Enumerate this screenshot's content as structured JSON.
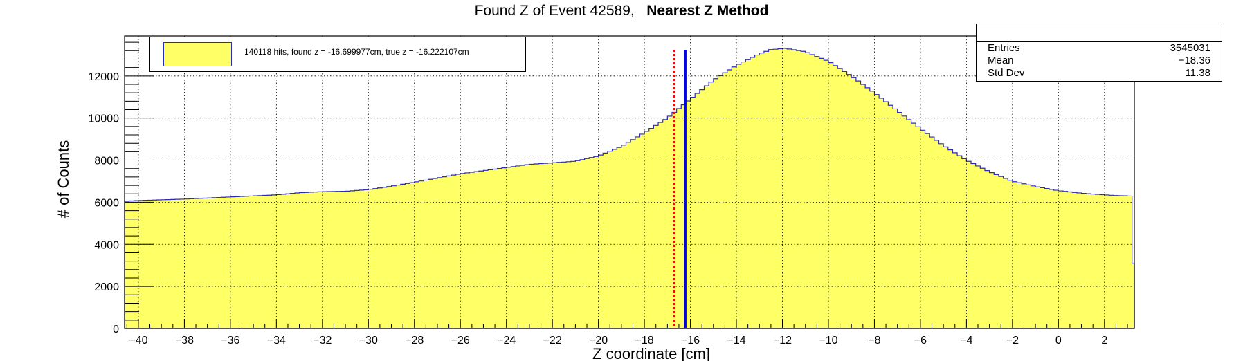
{
  "title": {
    "prefix": "Found Z of Event 42589,",
    "method": "Nearest Z Method"
  },
  "legend": {
    "label": "140118 hits, found z = -16.699977cm, true z = -16.222107cm",
    "fill_color": "#ffff66",
    "line_color": "#2b2bb5"
  },
  "stats": {
    "entries_label": "Entries",
    "entries_value": "3545031",
    "mean_label": "Mean",
    "mean_value": "−18.36",
    "stddev_label": "Std Dev",
    "stddev_value": "11.38"
  },
  "chart_data": {
    "type": "histogram",
    "xlabel": "Z coordinate [cm]",
    "ylabel": "# of Counts",
    "xlim": [
      -40.6,
      3.3
    ],
    "ylim": [
      0,
      13900
    ],
    "x_ticks": [
      -40,
      -38,
      -36,
      -34,
      -32,
      -30,
      -28,
      -26,
      -24,
      -22,
      -20,
      -18,
      -16,
      -14,
      -12,
      -10,
      -8,
      -6,
      -4,
      -2,
      0,
      2
    ],
    "y_ticks": [
      0,
      2000,
      4000,
      6000,
      8000,
      10000,
      12000
    ],
    "grid": true,
    "bin_width": 0.2,
    "fill_color": "#ffff66",
    "line_color": "#2b2bb5",
    "profile": [
      [
        -40.6,
        3000
      ],
      [
        -40.5,
        6050
      ],
      [
        -40,
        6080
      ],
      [
        -38,
        6150
      ],
      [
        -36,
        6250
      ],
      [
        -34,
        6350
      ],
      [
        -33,
        6450
      ],
      [
        -32,
        6500
      ],
      [
        -31,
        6520
      ],
      [
        -30,
        6600
      ],
      [
        -29,
        6760
      ],
      [
        -28,
        6950
      ],
      [
        -27,
        7150
      ],
      [
        -26,
        7350
      ],
      [
        -25,
        7500
      ],
      [
        -24,
        7650
      ],
      [
        -23,
        7800
      ],
      [
        -22,
        7870
      ],
      [
        -21,
        7950
      ],
      [
        -20,
        8200
      ],
      [
        -19,
        8650
      ],
      [
        -18,
        9300
      ],
      [
        -17,
        10000
      ],
      [
        -16,
        10900
      ],
      [
        -15,
        11800
      ],
      [
        -14,
        12500
      ],
      [
        -13,
        13050
      ],
      [
        -12.5,
        13250
      ],
      [
        -11.9,
        13310
      ],
      [
        -11.7,
        13280
      ],
      [
        -11,
        13150
      ],
      [
        -10,
        12700
      ],
      [
        -9,
        12000
      ],
      [
        -8,
        11200
      ],
      [
        -7,
        10350
      ],
      [
        -6,
        9500
      ],
      [
        -5,
        8700
      ],
      [
        -4,
        8000
      ],
      [
        -3,
        7450
      ],
      [
        -2,
        7000
      ],
      [
        -1,
        6750
      ],
      [
        0,
        6550
      ],
      [
        1,
        6430
      ],
      [
        2,
        6350
      ],
      [
        2.5,
        6320
      ],
      [
        3.0,
        6300
      ],
      [
        3.2,
        6290
      ],
      [
        3.3,
        3100
      ]
    ],
    "markers": [
      {
        "name": "found z",
        "x": -16.699977,
        "color": "#ff0000",
        "style": "dotted"
      },
      {
        "name": "true z",
        "x": -16.222107,
        "color": "#0000ff",
        "style": "solid"
      }
    ]
  }
}
